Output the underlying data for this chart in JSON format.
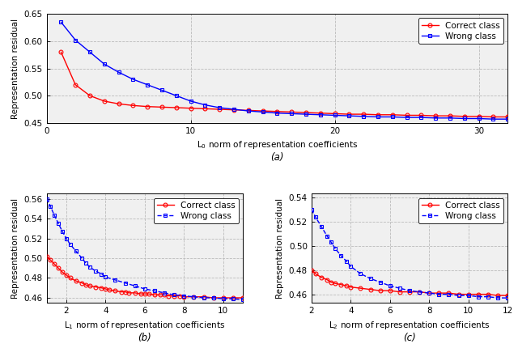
{
  "panel_a": {
    "title": "(a)",
    "xlabel": "L$_0$ norm of representation coefficients",
    "ylabel": "Representation residual",
    "xlim": [
      0,
      32
    ],
    "ylim": [
      0.45,
      0.65
    ],
    "yticks": [
      0.45,
      0.5,
      0.55,
      0.6,
      0.65
    ],
    "xticks": [
      0,
      10,
      20,
      30
    ],
    "correct_x": [
      1,
      2,
      3,
      4,
      5,
      6,
      7,
      8,
      9,
      10,
      11,
      12,
      13,
      14,
      15,
      16,
      17,
      18,
      19,
      20,
      21,
      22,
      23,
      24,
      25,
      26,
      27,
      28,
      29,
      30,
      31,
      32
    ],
    "correct_y": [
      0.58,
      0.52,
      0.5,
      0.49,
      0.485,
      0.482,
      0.48,
      0.479,
      0.478,
      0.477,
      0.476,
      0.475,
      0.474,
      0.473,
      0.472,
      0.471,
      0.47,
      0.469,
      0.468,
      0.467,
      0.466,
      0.466,
      0.465,
      0.465,
      0.464,
      0.464,
      0.463,
      0.463,
      0.462,
      0.462,
      0.461,
      0.461
    ],
    "wrong_x": [
      1,
      2,
      3,
      4,
      5,
      6,
      7,
      8,
      9,
      10,
      11,
      12,
      13,
      14,
      15,
      16,
      17,
      18,
      19,
      20,
      21,
      22,
      23,
      24,
      25,
      26,
      27,
      28,
      29,
      30,
      31,
      32
    ],
    "wrong_y": [
      0.635,
      0.602,
      0.58,
      0.558,
      0.543,
      0.53,
      0.52,
      0.51,
      0.5,
      0.49,
      0.483,
      0.478,
      0.475,
      0.472,
      0.47,
      0.468,
      0.467,
      0.466,
      0.465,
      0.464,
      0.463,
      0.462,
      0.461,
      0.461,
      0.46,
      0.46,
      0.459,
      0.459,
      0.458,
      0.458,
      0.457,
      0.457
    ]
  },
  "panel_b": {
    "title": "(b)",
    "xlabel": "L$_1$ norm of representation coefficients",
    "ylabel": "Representation residual",
    "xlim": [
      1,
      11
    ],
    "ylim": [
      0.455,
      0.565
    ],
    "yticks": [
      0.46,
      0.48,
      0.5,
      0.52,
      0.54,
      0.56
    ],
    "xticks": [
      2,
      4,
      6,
      8,
      10
    ],
    "correct_x": [
      1.0,
      1.2,
      1.4,
      1.6,
      1.8,
      2.0,
      2.2,
      2.5,
      2.8,
      3.0,
      3.2,
      3.5,
      3.8,
      4.0,
      4.2,
      4.5,
      4.8,
      5.0,
      5.2,
      5.5,
      5.8,
      6.0,
      6.2,
      6.5,
      6.8,
      7.0,
      7.2,
      7.5,
      7.8,
      8.0,
      8.5,
      9.0,
      9.5,
      10.0,
      10.5,
      11.0
    ],
    "correct_y": [
      0.502,
      0.498,
      0.494,
      0.49,
      0.486,
      0.483,
      0.48,
      0.477,
      0.475,
      0.473,
      0.472,
      0.471,
      0.47,
      0.469,
      0.468,
      0.467,
      0.466,
      0.466,
      0.465,
      0.465,
      0.464,
      0.464,
      0.464,
      0.463,
      0.463,
      0.463,
      0.462,
      0.462,
      0.462,
      0.461,
      0.461,
      0.461,
      0.46,
      0.46,
      0.46,
      0.46
    ],
    "wrong_x": [
      1.0,
      1.2,
      1.4,
      1.6,
      1.8,
      2.0,
      2.2,
      2.5,
      2.8,
      3.0,
      3.2,
      3.5,
      3.8,
      4.0,
      4.5,
      5.0,
      5.5,
      6.0,
      6.5,
      7.0,
      7.5,
      8.0,
      8.5,
      9.0,
      9.5,
      10.0,
      10.5,
      11.0
    ],
    "wrong_y": [
      0.56,
      0.552,
      0.543,
      0.535,
      0.527,
      0.52,
      0.514,
      0.507,
      0.5,
      0.495,
      0.491,
      0.487,
      0.484,
      0.481,
      0.478,
      0.475,
      0.472,
      0.469,
      0.467,
      0.465,
      0.463,
      0.462,
      0.461,
      0.46,
      0.46,
      0.459,
      0.459,
      0.458
    ]
  },
  "panel_c": {
    "title": "(c)",
    "xlabel": "L$_2$ norm of representation coefficients",
    "ylabel": "Representation residual",
    "xlim": [
      2,
      12
    ],
    "ylim": [
      0.453,
      0.543
    ],
    "yticks": [
      0.46,
      0.48,
      0.5,
      0.52,
      0.54
    ],
    "xticks": [
      2,
      4,
      6,
      8,
      10,
      12
    ],
    "correct_x": [
      2.0,
      2.2,
      2.5,
      2.8,
      3.0,
      3.2,
      3.5,
      3.8,
      4.0,
      4.5,
      5.0,
      5.5,
      6.0,
      6.5,
      7.0,
      7.5,
      8.0,
      8.5,
      9.0,
      9.5,
      10.0,
      10.5,
      11.0,
      11.5,
      12.0
    ],
    "correct_y": [
      0.48,
      0.477,
      0.474,
      0.472,
      0.47,
      0.469,
      0.468,
      0.467,
      0.466,
      0.465,
      0.464,
      0.463,
      0.463,
      0.462,
      0.462,
      0.462,
      0.461,
      0.461,
      0.461,
      0.46,
      0.46,
      0.46,
      0.46,
      0.459,
      0.459
    ],
    "wrong_x": [
      2.0,
      2.2,
      2.5,
      2.8,
      3.0,
      3.2,
      3.5,
      3.8,
      4.0,
      4.5,
      5.0,
      5.5,
      6.0,
      6.5,
      7.0,
      7.5,
      8.0,
      8.5,
      9.0,
      9.5,
      10.0,
      10.5,
      11.0,
      11.5,
      12.0
    ],
    "wrong_y": [
      0.53,
      0.524,
      0.516,
      0.508,
      0.503,
      0.498,
      0.492,
      0.487,
      0.483,
      0.477,
      0.473,
      0.47,
      0.467,
      0.465,
      0.463,
      0.462,
      0.461,
      0.46,
      0.46,
      0.459,
      0.459,
      0.458,
      0.458,
      0.457,
      0.457
    ]
  },
  "correct_color": "#FF0000",
  "wrong_color": "#0000FF",
  "marker_correct": "o",
  "marker_wrong": "s",
  "markersize": 3.5,
  "linewidth": 1.0,
  "fontsize_label": 7.5,
  "fontsize_tick": 7.5,
  "fontsize_legend": 7.5,
  "fontsize_subtitle": 8.5,
  "grid_color": "#BBBBBB",
  "grid_style": "--",
  "bg_color": "#F0F0F0",
  "fig_bg": "#FFFFFF"
}
